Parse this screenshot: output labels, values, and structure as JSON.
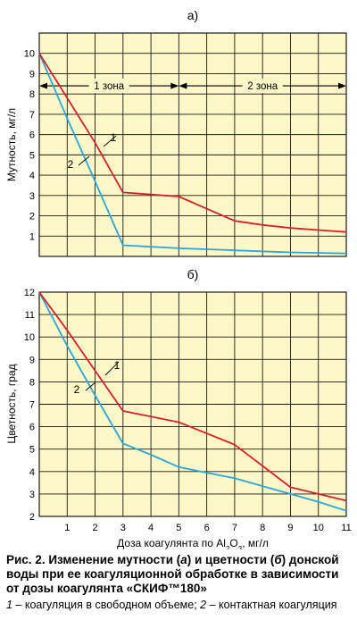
{
  "colors": {
    "plot_bg": "#fcf8c8",
    "grid": "#1a1a1a",
    "series_1": "#d8202a",
    "series_2": "#2ea3dc"
  },
  "chart_data": [
    {
      "type": "line",
      "panel_label": "а)",
      "ylabel": "Мутность, мг/л",
      "xlim": [
        0,
        11
      ],
      "ylim": [
        0,
        11
      ],
      "yticks": [
        1,
        2,
        3,
        4,
        5,
        6,
        7,
        8,
        9,
        10
      ],
      "grid": true,
      "zones": [
        {
          "label": "1 зона",
          "from": 0,
          "to": 5
        },
        {
          "label": "2 зона",
          "from": 5,
          "to": 11
        }
      ],
      "series": [
        {
          "name": "1",
          "x": [
            0,
            1,
            2,
            3,
            4,
            5,
            6,
            7,
            8,
            9,
            10,
            11
          ],
          "y": [
            10.0,
            7.8,
            5.6,
            3.15,
            3.05,
            2.95,
            2.35,
            1.75,
            1.55,
            1.4,
            1.3,
            1.2
          ]
        },
        {
          "name": "2",
          "x": [
            0,
            1,
            2,
            3,
            5,
            7,
            9,
            11
          ],
          "y": [
            10.0,
            6.8,
            3.7,
            0.55,
            0.4,
            0.3,
            0.2,
            0.15
          ]
        }
      ]
    },
    {
      "type": "line",
      "panel_label": "б)",
      "ylabel": "Цветность, град",
      "xlabel": "Доза коагулянта по Al2O3, мг/л",
      "xlim": [
        0,
        11
      ],
      "ylim": [
        2,
        12
      ],
      "xticks": [
        1,
        2,
        3,
        4,
        5,
        6,
        7,
        8,
        9,
        10,
        11
      ],
      "yticks": [
        2,
        3,
        4,
        5,
        6,
        7,
        8,
        9,
        10,
        11,
        12
      ],
      "grid": true,
      "series": [
        {
          "name": "1",
          "x": [
            0,
            1,
            2,
            3,
            4,
            5,
            6,
            7,
            8,
            9,
            10,
            11
          ],
          "y": [
            12.0,
            10.3,
            8.5,
            6.7,
            6.45,
            6.2,
            5.7,
            5.2,
            4.25,
            3.3,
            3.0,
            2.7
          ]
        },
        {
          "name": "2",
          "x": [
            0,
            1,
            2,
            3,
            4,
            5,
            6,
            7,
            8,
            9,
            10,
            11
          ],
          "y": [
            12.0,
            9.6,
            7.4,
            5.25,
            4.75,
            4.2,
            3.95,
            3.7,
            3.35,
            3.0,
            2.65,
            2.25
          ]
        }
      ]
    }
  ],
  "caption": {
    "line1": "Рис. 2. Изменение мутности (",
    "a": "а",
    "line2": ") и цветности (",
    "b": "б",
    "line3": ") донской воды при ее коагуляционной обработке в зависимости от дозы коагулянта «СКИФ™180»",
    "n1": "1",
    "t1": " – коагуляция в свободном объеме; ",
    "n2": "2",
    "t2": " – контактная коагуляция"
  }
}
